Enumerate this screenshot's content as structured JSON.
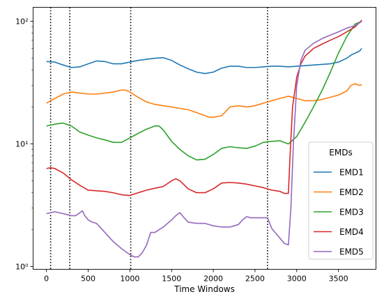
{
  "chart_data": {
    "type": "line",
    "xlabel": "Time Windows",
    "ylabel": "",
    "yscale": "log",
    "xlim": [
      -160,
      3950
    ],
    "ylim": [
      0.95,
      130
    ],
    "x_ticks": [
      0,
      500,
      1000,
      1500,
      2000,
      2500,
      3000,
      3500
    ],
    "y_ticks": [
      {
        "value": 1,
        "label": "10⁰"
      },
      {
        "value": 10,
        "label": "10¹"
      },
      {
        "value": 100,
        "label": "10²"
      }
    ],
    "grid": false,
    "legend": {
      "title": "EMDs",
      "placement": "lower right"
    },
    "vlines": {
      "x": [
        50,
        280,
        1010,
        2650
      ],
      "style": "dotted",
      "color": "#000000"
    },
    "series": [
      {
        "name": "EMD1",
        "color": "#1f77b4",
        "x": [
          0,
          100,
          200,
          300,
          400,
          500,
          600,
          700,
          800,
          900,
          1000,
          1100,
          1200,
          1300,
          1400,
          1500,
          1600,
          1700,
          1800,
          1900,
          2000,
          2100,
          2200,
          2300,
          2400,
          2500,
          2600,
          2700,
          2800,
          2900,
          3000,
          3100,
          3200,
          3300,
          3400,
          3500,
          3600,
          3650,
          3700,
          3750,
          3780
        ],
        "values": [
          47,
          46.5,
          44,
          42,
          42.5,
          45,
          47.5,
          47,
          45,
          45,
          46.5,
          48,
          49,
          50,
          50.5,
          48,
          44,
          41,
          38.5,
          37.5,
          38.5,
          41.5,
          43,
          43,
          42,
          42,
          42.5,
          43,
          43,
          42.5,
          43,
          43.5,
          44,
          44.5,
          45,
          46.5,
          50,
          53,
          55,
          57,
          60
        ]
      },
      {
        "name": "EMD2",
        "color": "#ff7f0e",
        "x": [
          0,
          100,
          200,
          300,
          400,
          500,
          600,
          700,
          800,
          900,
          950,
          1000,
          1100,
          1200,
          1300,
          1400,
          1500,
          1600,
          1700,
          1800,
          1900,
          1950,
          2000,
          2100,
          2200,
          2300,
          2400,
          2500,
          2600,
          2700,
          2800,
          2900,
          3000,
          3100,
          3200,
          3300,
          3400,
          3500,
          3600,
          3650,
          3700,
          3750,
          3780
        ],
        "values": [
          21.5,
          23.5,
          25.5,
          26.5,
          26,
          25.5,
          25.5,
          26,
          26.5,
          27.5,
          27.5,
          26.5,
          24,
          22,
          21,
          20.5,
          20,
          19.5,
          19,
          18,
          17,
          16.5,
          16.5,
          17,
          20,
          20.5,
          20,
          20.5,
          21.5,
          22.5,
          23.5,
          24.5,
          23.5,
          22.5,
          22.5,
          23,
          24,
          25,
          27,
          30,
          31,
          30,
          30.5
        ]
      },
      {
        "name": "EMD3",
        "color": "#2ca02c",
        "x": [
          0,
          100,
          200,
          300,
          400,
          500,
          600,
          700,
          800,
          900,
          1000,
          1100,
          1200,
          1300,
          1350,
          1400,
          1500,
          1600,
          1700,
          1800,
          1900,
          2000,
          2100,
          2200,
          2300,
          2400,
          2500,
          2600,
          2700,
          2800,
          2900,
          3000,
          3100,
          3200,
          3300,
          3400,
          3500,
          3600,
          3700,
          3780
        ],
        "values": [
          14,
          14.5,
          14.8,
          14,
          12.5,
          11.8,
          11.2,
          10.8,
          10.3,
          10.3,
          11.2,
          12.2,
          13.2,
          14,
          14,
          13,
          10.5,
          9,
          8,
          7.4,
          7.5,
          8.2,
          9.2,
          9.5,
          9.3,
          9.2,
          9.6,
          10.3,
          10.5,
          10.6,
          10,
          11.5,
          15,
          20,
          27,
          38,
          55,
          75,
          95,
          100
        ]
      },
      {
        "name": "EMD4",
        "color": "#d62728",
        "x": [
          0,
          50,
          100,
          200,
          300,
          400,
          500,
          600,
          700,
          800,
          900,
          1000,
          1100,
          1200,
          1300,
          1400,
          1500,
          1550,
          1600,
          1700,
          1800,
          1900,
          2000,
          2100,
          2200,
          2300,
          2400,
          2500,
          2600,
          2700,
          2800,
          2850,
          2900,
          2920,
          2950,
          3000,
          3050,
          3100,
          3200,
          3300,
          3400,
          3500,
          3600,
          3700,
          3780
        ],
        "values": [
          6.3,
          6.4,
          6.3,
          5.8,
          5.1,
          4.6,
          4.2,
          4.15,
          4.1,
          4.0,
          3.85,
          3.8,
          4.0,
          4.2,
          4.35,
          4.5,
          5.0,
          5.2,
          5.0,
          4.3,
          4.0,
          4.0,
          4.3,
          4.8,
          4.85,
          4.8,
          4.7,
          4.55,
          4.4,
          4.2,
          4.1,
          3.95,
          3.95,
          8,
          20,
          35,
          45,
          52,
          60,
          65,
          70,
          75,
          82,
          90,
          102
        ]
      },
      {
        "name": "EMD5",
        "color": "#9467bd",
        "x": [
          0,
          50,
          100,
          150,
          200,
          250,
          300,
          350,
          400,
          430,
          460,
          500,
          550,
          600,
          700,
          800,
          900,
          1000,
          1050,
          1100,
          1150,
          1200,
          1250,
          1300,
          1400,
          1500,
          1550,
          1600,
          1650,
          1700,
          1800,
          1900,
          2000,
          2100,
          2200,
          2250,
          2300,
          2350,
          2400,
          2450,
          2500,
          2550,
          2600,
          2650,
          2700,
          2800,
          2850,
          2900,
          2930,
          2960,
          3000,
          3050,
          3100,
          3200,
          3300,
          3400,
          3500,
          3600,
          3700,
          3780
        ],
        "values": [
          2.7,
          2.75,
          2.8,
          2.75,
          2.7,
          2.65,
          2.6,
          2.6,
          2.75,
          2.85,
          2.6,
          2.4,
          2.3,
          2.25,
          1.9,
          1.6,
          1.4,
          1.25,
          1.2,
          1.2,
          1.3,
          1.5,
          1.9,
          1.9,
          2.1,
          2.4,
          2.6,
          2.75,
          2.5,
          2.3,
          2.25,
          2.25,
          2.15,
          2.1,
          2.1,
          2.15,
          2.2,
          2.4,
          2.55,
          2.5,
          2.5,
          2.5,
          2.5,
          2.5,
          2.05,
          1.7,
          1.55,
          1.5,
          3,
          10,
          30,
          48,
          58,
          66,
          72,
          77,
          82,
          88,
          92,
          100
        ]
      }
    ]
  }
}
